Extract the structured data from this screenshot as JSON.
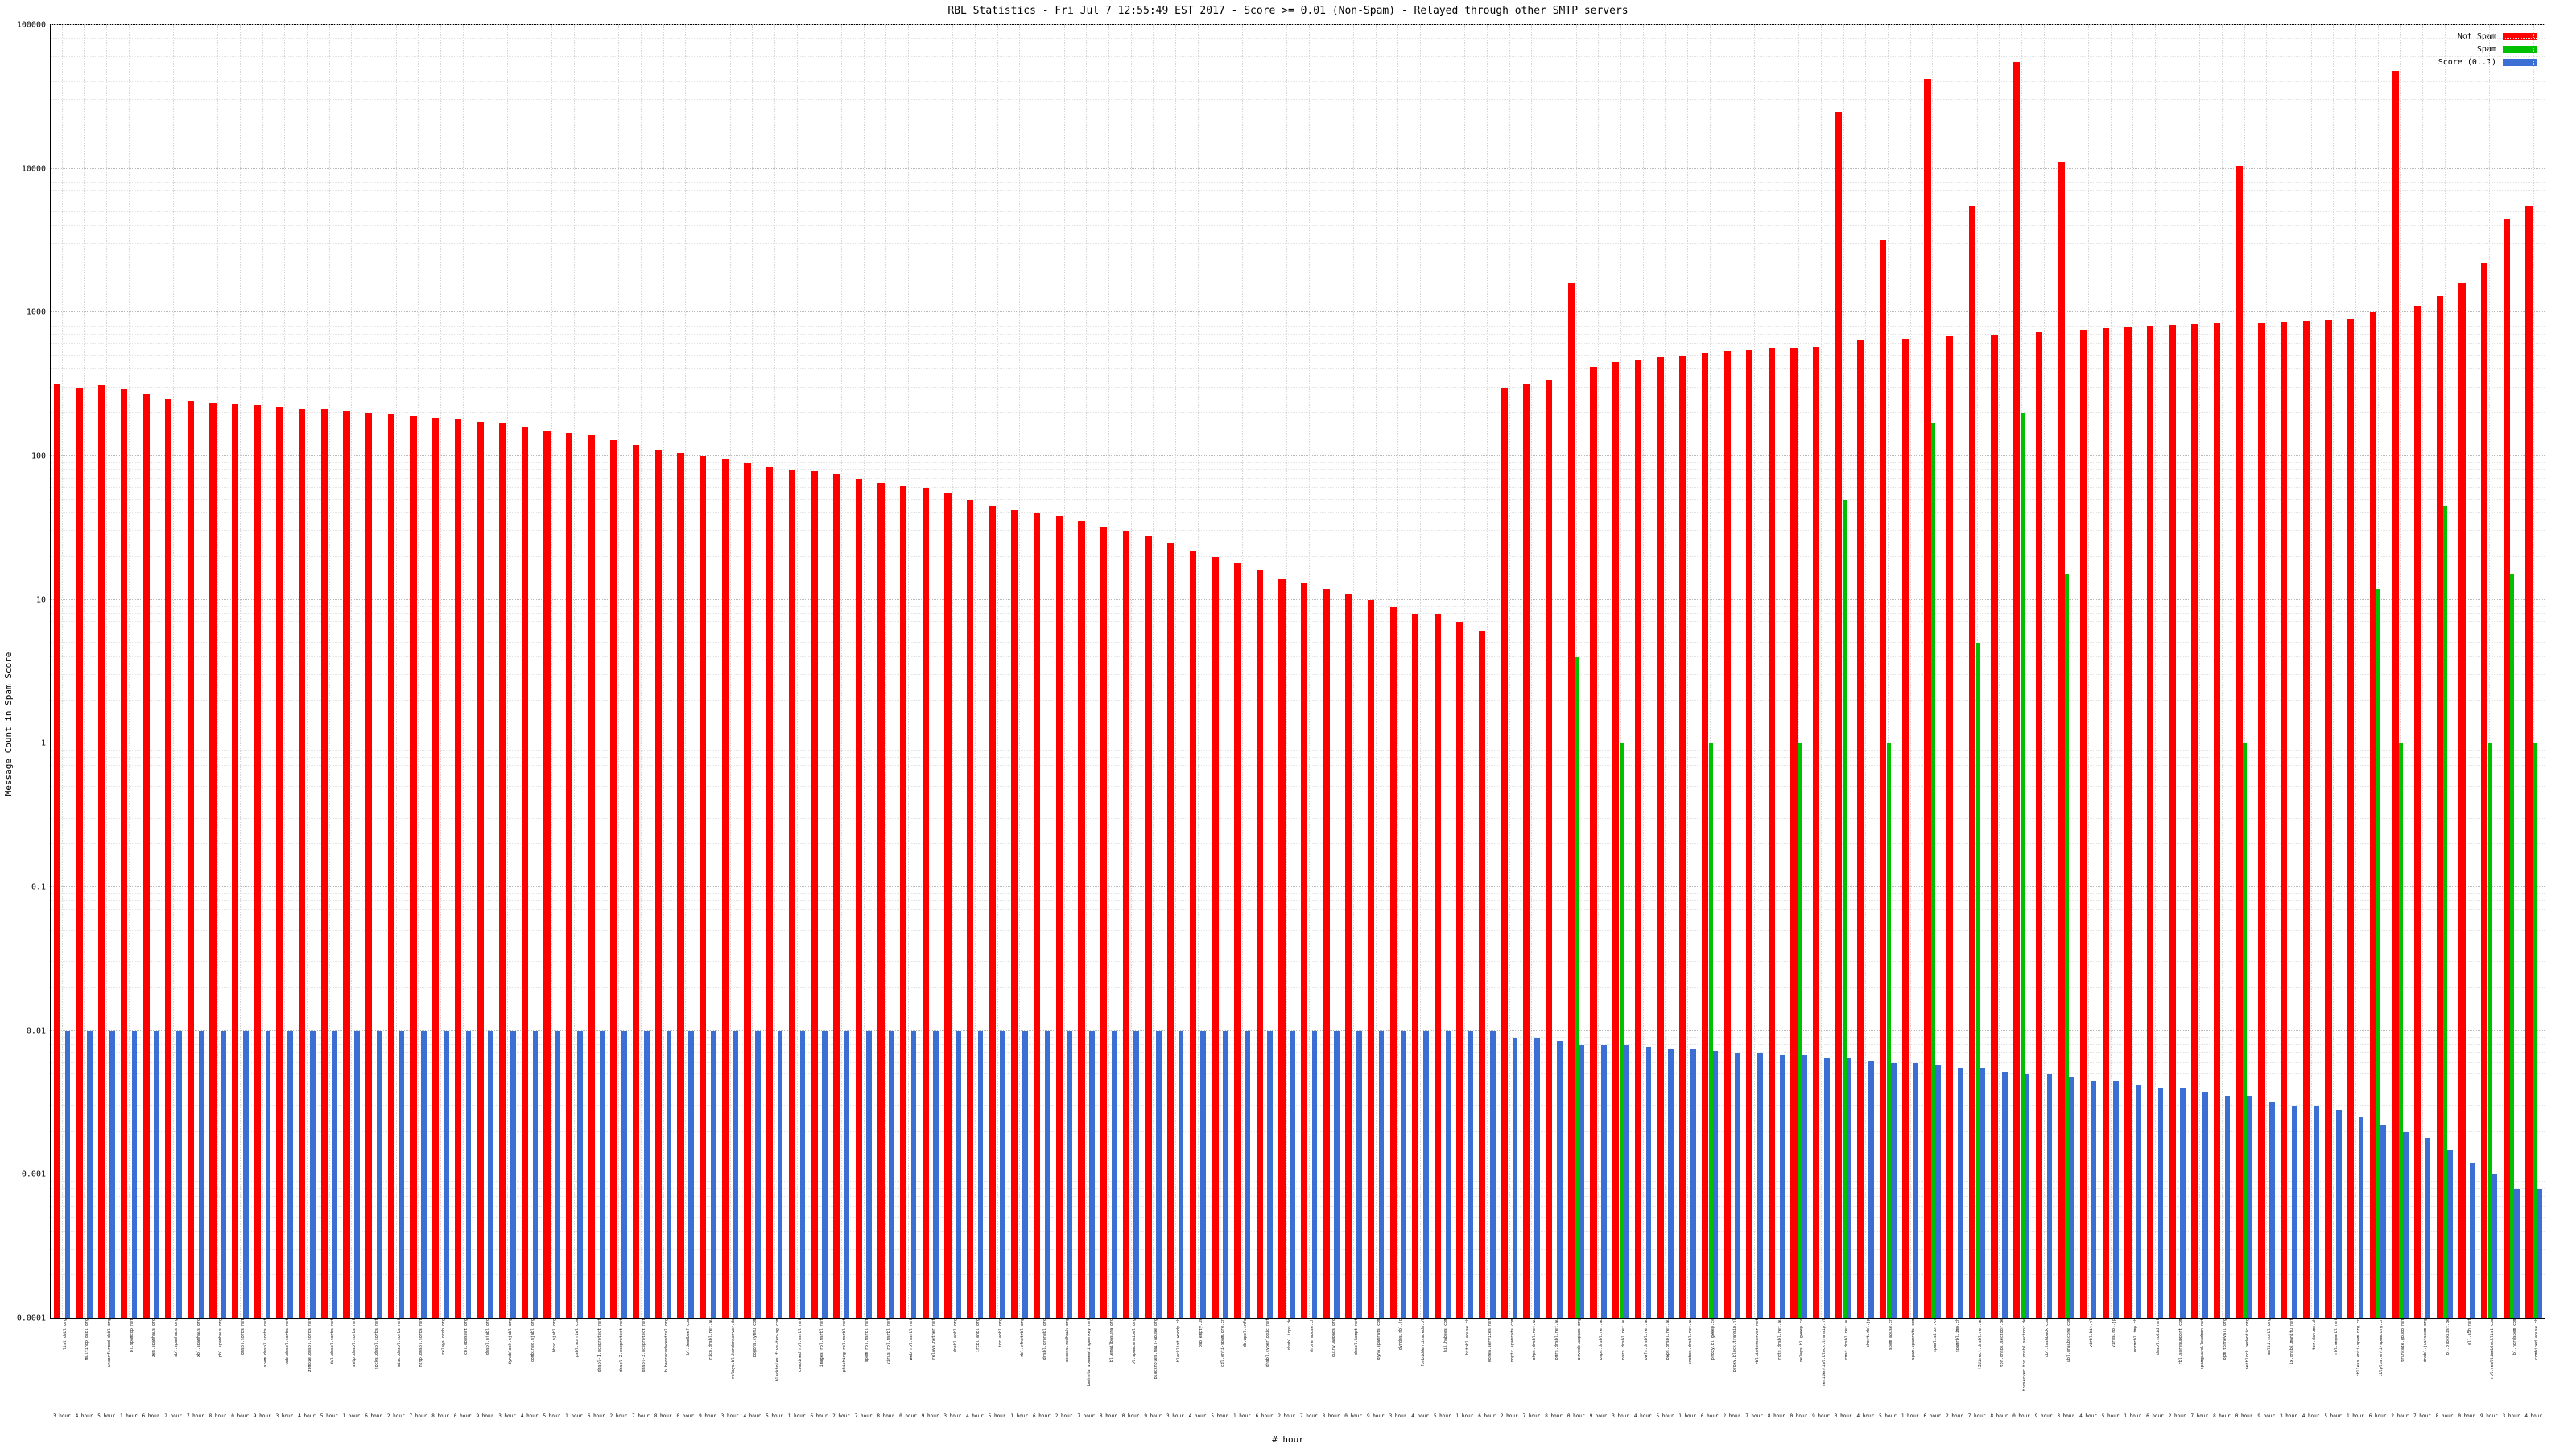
{
  "title": "RBL Statistics - Fri Jul  7 12:55:49 EST 2017 - Score >= 0.01 (Non-Spam) - Relayed through other SMTP servers",
  "ylabel": "Message Count in Spam Score",
  "xlabel": "# hour",
  "legend": [
    {
      "label": "Not Spam",
      "color": "#ff0000"
    },
    {
      "label": "Spam",
      "color": "#00c000"
    },
    {
      "label": "Score (0..1)",
      "color": "#3b6fd4"
    }
  ],
  "chart_data": {
    "type": "bar",
    "y_scale": "log",
    "ylim": [
      0.0001,
      100000
    ],
    "grid": true,
    "legend_position": "top-right",
    "title": "RBL Statistics - Fri Jul  7 12:55:49 EST 2017 - Score >= 0.01 (Non-Spam) - Relayed through other SMTP servers",
    "xlabel": "# hour",
    "ylabel": "Message Count in Spam Score",
    "y_ticks": [
      {
        "label": "100000",
        "value": 100000
      },
      {
        "label": "10000",
        "value": 10000
      },
      {
        "label": "1000",
        "value": 1000
      },
      {
        "label": "100",
        "value": 100
      },
      {
        "label": "10",
        "value": 10
      },
      {
        "label": "1",
        "value": 1
      },
      {
        "label": "0.1",
        "value": 0.1
      },
      {
        "label": "0.01",
        "value": 0.01
      },
      {
        "label": "0.001",
        "value": 0.001
      },
      {
        "label": "0.0001",
        "value": 0.0001
      }
    ],
    "hour_cycle": [
      "3 hour",
      "4 hour",
      "5 hour",
      "1 hour",
      "6 hour",
      "2 hour",
      "7 hour",
      "8 hour",
      "0 hour",
      "9 hour"
    ],
    "categories": [
      "list.dsbl.org",
      "multihop.dsbl.org",
      "unconfirmed.dsbl.org",
      "bl.spamcop.net",
      "zen.spamhaus.org",
      "sbl.spamhaus.org",
      "xbl.spamhaus.org",
      "pbl.spamhaus.org",
      "dnsbl.sorbs.net",
      "spam.dnsbl.sorbs.net",
      "web.dnsbl.sorbs.net",
      "zombie.dnsbl.sorbs.net",
      "dul.dnsbl.sorbs.net",
      "smtp.dnsbl.sorbs.net",
      "socks.dnsbl.sorbs.net",
      "misc.dnsbl.sorbs.net",
      "http.dnsbl.sorbs.net",
      "relays.ordb.org",
      "cbl.abuseat.org",
      "dnsbl.njabl.org",
      "dynablock.njabl.org",
      "combined.njabl.org",
      "bhnc.njabl.org",
      "psbl.surriel.com",
      "dnsbl-1.uceprotect.net",
      "dnsbl-2.uceprotect.net",
      "dnsbl-3.uceprotect.net",
      "b.barracudacentral.org",
      "bl.deadbeef.com",
      "ricn.dnsbl.net.au",
      "relays.bl.kundenserver.de",
      "bogons.cymru.com",
      "blackholes.five-ten-sg.com",
      "combined.rbl.msrbl.net",
      "images.rbl.msrbl.net",
      "phishing.rbl.msrbl.net",
      "spam.rbl.msrbl.net",
      "virus.rbl.msrbl.net",
      "web.rbl.msrbl.net",
      "relays.nether.net",
      "dnsbl.ahbl.org",
      "ircbl.ahbl.org",
      "tor.ahbl.org",
      "rbl.efnetrbl.org",
      "dnsbl.dronebl.org",
      "access.redhawk.org",
      "badnets.spameatingmonkey.net",
      "bl.emailbasura.org",
      "bl.spamcannibal.org",
      "blackholes.mail-abuse.org",
      "blacklist.woody.ch",
      "bsb.empty.us",
      "cdl.anti-spam.org.cn",
      "db.wpbl.info",
      "dnsbl.cyberlogic.net",
      "dnsbl.inps.de",
      "drone.abuse.ch",
      "duinv.aupads.org",
      "dnsbl.kempt.net",
      "dyna.spamrats.com",
      "dyndns.rbl.jp",
      "forbidden.icm.edu.pl",
      "hil.habeas.com",
      "httpbl.abuse.ch",
      "korea.services.net",
      "noptr.spamrats.com",
      "ohps.dnsbl.net.au",
      "omrs.dnsbl.net.au",
      "orvedb.aupads.org",
      "osps.dnsbl.net.au",
      "osrs.dnsbl.net.au",
      "owfs.dnsbl.net.au",
      "owps.dnsbl.net.au",
      "probes.dnsbl.net.au",
      "proxy.bl.gweep.ca",
      "proxy.block.transip.nl",
      "rbl.interserver.net",
      "rdts.dnsbl.net.au",
      "relays.bl.gweep.ca",
      "residential.block.transip.nl",
      "rmst.dnsbl.net.au",
      "short.rbl.jp",
      "spam.abuse.ch",
      "spam.spamrats.com",
      "spamlist.or.kr",
      "spamrbl.imp.ch",
      "t3direct.dnsbl.net.au",
      "tor.dnsbl.sectoor.de",
      "torserver.tor.dnsbl.sectoor.de",
      "ubl.lashback.com",
      "ubl.unsubscore.com",
      "virbl.bit.nl",
      "virus.rbl.jp",
      "wormrbl.imp.ch",
      "dnsbl.solid.net",
      "rbl.suresupport.com",
      "spamguard.leadmon.net",
      "opm.tornevall.org",
      "netblock.pedantic.org",
      "multi.surbl.org",
      "ix.dnsbl.manitu.net",
      "tor.dan.me.uk",
      "rbl.megarbl.net",
      "cblless.anti-spam.org.cn",
      "cblplus.anti-spam.org.cn",
      "truncate.gbudb.net",
      "dnsbl.justspam.org",
      "bl.blocklist.de",
      "all.s5h.net",
      "rbl.realtimeblacklist.com",
      "bl.nordspam.com",
      "combined.abuse.ch"
    ],
    "series": [
      {
        "name": "Not Spam",
        "color": "#ff0000",
        "values": [
          320,
          300,
          310,
          290,
          270,
          250,
          240,
          235,
          230,
          225,
          220,
          215,
          210,
          205,
          200,
          195,
          190,
          185,
          180,
          175,
          170,
          160,
          150,
          145,
          140,
          130,
          120,
          110,
          105,
          100,
          95,
          90,
          85,
          80,
          78,
          75,
          70,
          65,
          62,
          60,
          55,
          50,
          45,
          42,
          40,
          38,
          35,
          32,
          30,
          28,
          25,
          22,
          20,
          18,
          16,
          14,
          13,
          12,
          11,
          10,
          9,
          8,
          8,
          7,
          6,
          300,
          320,
          340,
          1600,
          420,
          450,
          470,
          490,
          500,
          520,
          540,
          550,
          560,
          570,
          580,
          25000,
          640,
          3200,
          660,
          42000,
          680,
          5500,
          700,
          55000,
          730,
          11000,
          760,
          780,
          800,
          810,
          820,
          830,
          840,
          10500,
          850,
          860,
          870,
          880,
          900,
          1000,
          48000,
          1100,
          1300,
          1600,
          2200,
          4500,
          5500
        ]
      },
      {
        "name": "Spam",
        "color": "#00c000",
        "values": [
          0,
          0,
          0,
          0,
          0,
          0,
          0,
          0,
          0,
          0,
          0,
          0,
          0,
          0,
          0,
          0,
          0,
          0,
          0,
          0,
          0,
          0,
          0,
          0,
          0,
          0,
          0,
          0,
          0,
          0,
          0,
          0,
          0,
          0,
          0,
          0,
          0,
          0,
          0,
          0,
          0,
          0,
          0,
          0,
          0,
          0,
          0,
          0,
          0,
          0,
          0,
          0,
          0,
          0,
          0,
          0,
          0,
          0,
          0,
          0,
          0,
          0,
          0,
          0,
          0,
          0,
          0,
          0,
          4,
          0,
          1,
          0,
          0,
          0,
          1,
          0,
          0,
          0,
          1,
          0,
          50,
          0,
          1,
          0,
          170,
          0,
          5,
          0,
          200,
          0,
          15,
          0,
          0,
          0,
          0,
          0,
          0,
          0,
          1,
          0,
          0,
          0,
          0,
          0,
          12,
          1,
          0,
          45,
          0,
          1,
          15,
          1
        ]
      },
      {
        "name": "Score (0..1)",
        "color": "#3b6fd4",
        "values": [
          0.01,
          0.01,
          0.01,
          0.01,
          0.01,
          0.01,
          0.01,
          0.01,
          0.01,
          0.01,
          0.01,
          0.01,
          0.01,
          0.01,
          0.01,
          0.01,
          0.01,
          0.01,
          0.01,
          0.01,
          0.01,
          0.01,
          0.01,
          0.01,
          0.01,
          0.01,
          0.01,
          0.01,
          0.01,
          0.01,
          0.01,
          0.01,
          0.01,
          0.01,
          0.01,
          0.01,
          0.01,
          0.01,
          0.01,
          0.01,
          0.01,
          0.01,
          0.01,
          0.01,
          0.01,
          0.01,
          0.01,
          0.01,
          0.01,
          0.01,
          0.01,
          0.01,
          0.01,
          0.01,
          0.01,
          0.01,
          0.01,
          0.01,
          0.01,
          0.01,
          0.01,
          0.01,
          0.01,
          0.01,
          0.01,
          0.009,
          0.009,
          0.0085,
          0.008,
          0.008,
          0.008,
          0.0078,
          0.0075,
          0.0075,
          0.0072,
          0.007,
          0.007,
          0.0068,
          0.0068,
          0.0065,
          0.0065,
          0.0062,
          0.006,
          0.006,
          0.0058,
          0.0055,
          0.0055,
          0.0052,
          0.005,
          0.005,
          0.0048,
          0.0045,
          0.0045,
          0.0042,
          0.004,
          0.004,
          0.0038,
          0.0035,
          0.0035,
          0.0032,
          0.003,
          0.003,
          0.0028,
          0.0025,
          0.0022,
          0.002,
          0.0018,
          0.0015,
          0.0012,
          0.001,
          0.0008,
          0.0008
        ]
      }
    ]
  }
}
